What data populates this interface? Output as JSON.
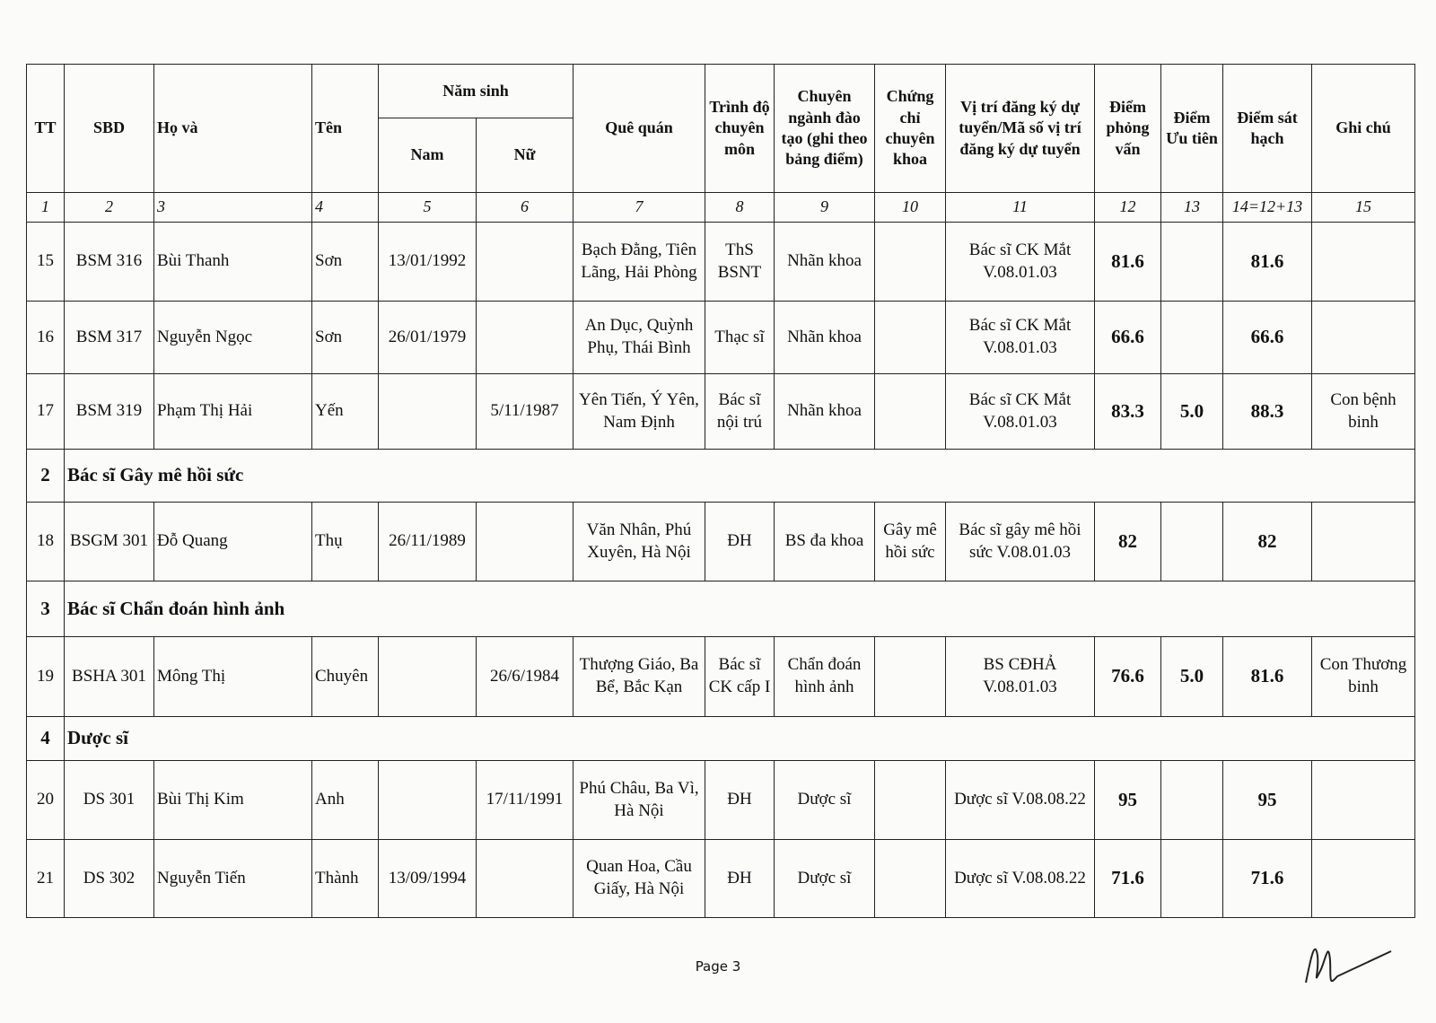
{
  "header_row_1": [
    "TT",
    "SBD",
    "Họ và",
    "Tên",
    "Năm sinh",
    "Quê quán",
    "Trình độ chuyên môn",
    "Chuyên ngành đào tạo (ghi theo bảng điểm)",
    "Chứng chỉ chuyên khoa",
    "Vị trí đăng ký dự tuyển/Mã số vị trí đăng ký dự tuyển",
    "Điểm phỏng vấn",
    "Điểm Ưu tiên",
    "Điểm sát hạch",
    "Ghi chú"
  ],
  "header_row_2": [
    "Nam",
    "Nữ"
  ],
  "column_numbers": [
    "1",
    "2",
    "3",
    "4",
    "5",
    "6",
    "7",
    "8",
    "9",
    "10",
    "11",
    "12",
    "13",
    "14=12+13",
    "15"
  ],
  "rows": [
    {
      "cells": [
        "15",
        "BSM 316",
        "Bùi Thanh",
        "Sơn",
        "13/01/1992",
        null,
        "Bạch Đằng, Tiên Lãng, Hải Phòng",
        "ThS BSNT",
        "Nhãn khoa",
        null,
        "Bác sĩ CK Mắt V.08.01.03",
        "81.6",
        null,
        "81.6",
        null
      ]
    },
    {
      "cells": [
        "16",
        "BSM 317",
        "Nguyễn Ngọc",
        "Sơn",
        "26/01/1979",
        null,
        "An Dục, Quỳnh Phụ, Thái Bình",
        "Thạc sĩ",
        "Nhãn khoa",
        null,
        "Bác sĩ CK Mắt V.08.01.03",
        "66.6",
        null,
        "66.6",
        null
      ]
    },
    {
      "cells": [
        "17",
        "BSM 319",
        "Phạm Thị Hải",
        "Yến",
        null,
        "5/11/1987",
        "Yên Tiến, Ý Yên, Nam Định",
        "Bác sĩ nội trú",
        "Nhãn khoa",
        null,
        "Bác sĩ CK Mắt V.08.01.03",
        "83.3",
        "5.0",
        "88.3",
        "Con bệnh binh"
      ]
    },
    {
      "section": "2",
      "title": "Bác sĩ Gây mê hồi sức"
    },
    {
      "cells": [
        "18",
        "BSGM 301",
        "Đỗ Quang",
        "Thụ",
        "26/11/1989",
        null,
        "Văn Nhân, Phú Xuyên, Hà Nội",
        "ĐH",
        "BS đa khoa",
        "Gây mê hồi sức",
        "Bác sĩ gây mê hồi sức V.08.01.03",
        "82",
        null,
        "82",
        null
      ]
    },
    {
      "section": "3",
      "title": "Bác sĩ Chẩn đoán hình ảnh"
    },
    {
      "cells": [
        "19",
        "BSHA 301",
        "Mông Thị",
        "Chuyên",
        null,
        "26/6/1984",
        "Thượng Giáo, Ba Bể, Bắc Kạn",
        "Bác sĩ CK cấp I",
        "Chẩn đoán hình ảnh",
        null,
        "BS CĐHẢ V.08.01.03",
        "76.6",
        "5.0",
        "81.6",
        "Con Thương binh"
      ]
    },
    {
      "section": "4",
      "title": "Dược sĩ"
    },
    {
      "cells": [
        "20",
        "DS 301",
        "Bùi Thị Kim",
        "Anh",
        null,
        "17/11/1991",
        "Phú Châu, Ba Vì, Hà Nội",
        "ĐH",
        "Dược sĩ",
        null,
        "Dược sĩ V.08.08.22",
        "95",
        null,
        "95",
        null
      ]
    },
    {
      "cells": [
        "21",
        "DS 302",
        "Nguyễn Tiến",
        "Thành",
        "13/09/1994",
        null,
        "Quan Hoa, Cầu Giấy, Hà Nội",
        "ĐH",
        "Dược sĩ",
        null,
        "Dược sĩ V.08.08.22",
        "71.6",
        null,
        "71.6",
        null
      ]
    }
  ],
  "footer": {
    "page": "Page 3"
  }
}
